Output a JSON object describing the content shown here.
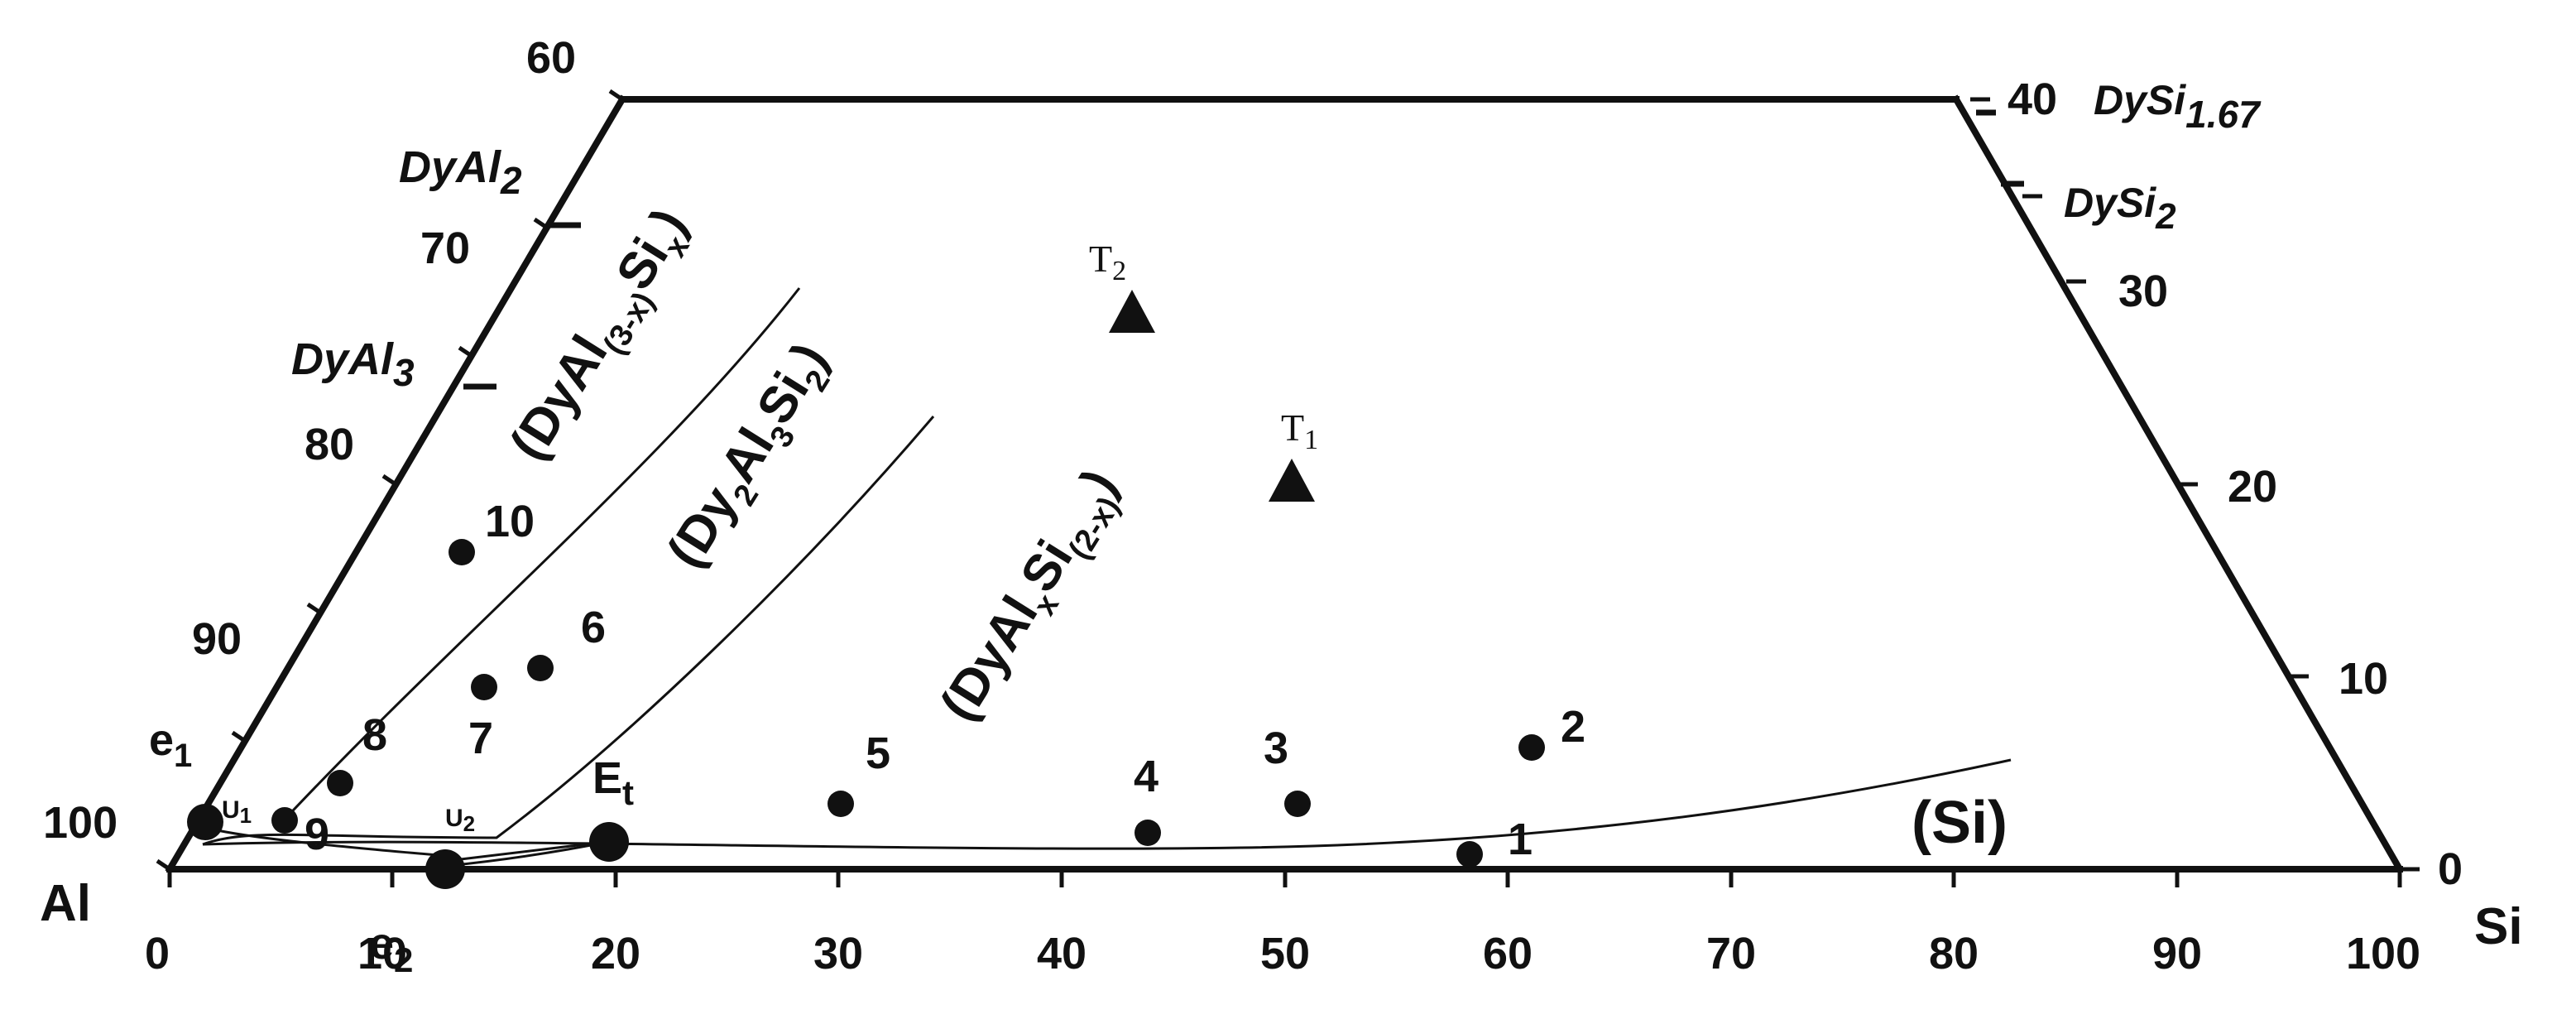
{
  "diagram": {
    "corners": {
      "al": "Al",
      "si": "Si"
    },
    "left_axis": {
      "ticks": [
        "60",
        "70",
        "80",
        "90",
        "100"
      ]
    },
    "right_axis": {
      "ticks": [
        "40",
        "30",
        "20",
        "10",
        "0"
      ]
    },
    "bottom_axis": {
      "ticks": [
        "0",
        "10",
        "20",
        "30",
        "40",
        "50",
        "60",
        "70",
        "80",
        "90",
        "100"
      ]
    },
    "compounds": {
      "dyal2": {
        "base": "DyAl",
        "sub": "2"
      },
      "dyal3": {
        "base": "DyAl",
        "sub": "3"
      },
      "dysi167": {
        "base": "DySi",
        "sub": "1.67"
      },
      "dysi2": {
        "base": "DySi",
        "sub": "2"
      }
    },
    "phase_fields": {
      "dyal3x": {
        "open": "(DyAl",
        "sub1": "(3-x)",
        "mid": "Si",
        "sub2": "x",
        "close": ")"
      },
      "dy2al3si2": {
        "open": "(Dy",
        "sub1": "2",
        "mid": "Al",
        "sub2": "3",
        "mid2": "Si",
        "sub3": "2",
        "close": ")"
      },
      "dyalxsi": {
        "open": "(DyAl",
        "sub1": "x",
        "mid": "Si",
        "sub2": "(2-x)",
        "close": ")"
      },
      "si": "(Si)"
    },
    "invariant_points": {
      "e1": {
        "base": "e",
        "sub": "1"
      },
      "e2": {
        "base": "e",
        "sub": "2"
      },
      "et": {
        "base": "E",
        "sub": "t"
      },
      "u1": {
        "base": "U",
        "sub": "1"
      },
      "u2": {
        "base": "U",
        "sub": "2"
      }
    },
    "ternary_phases": {
      "t1": {
        "base": "T",
        "sub": "1"
      },
      "t2": {
        "base": "T",
        "sub": "2"
      }
    },
    "alloys": [
      "1",
      "2",
      "3",
      "4",
      "5",
      "6",
      "7",
      "8",
      "9",
      "10"
    ],
    "color": "#111111"
  }
}
